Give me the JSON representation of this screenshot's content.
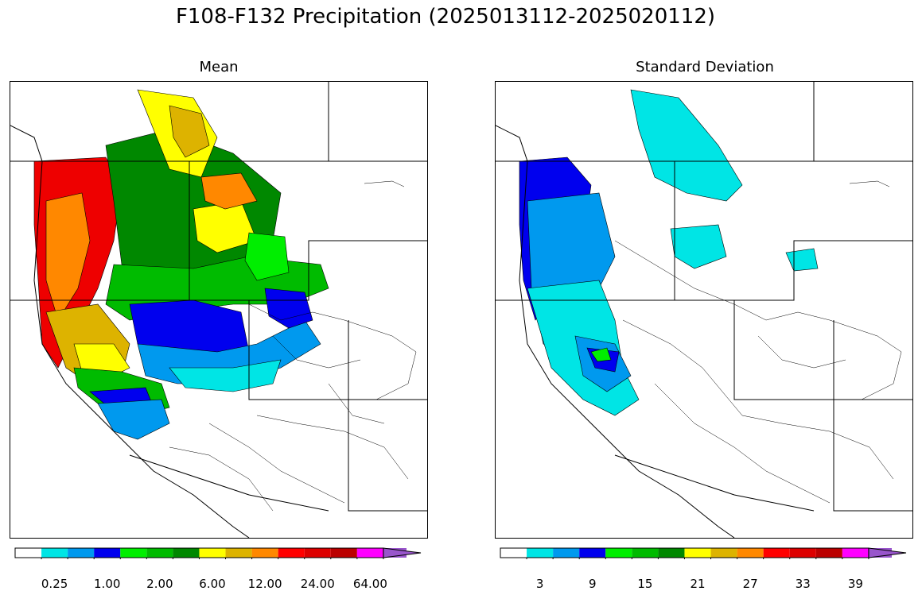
{
  "title": "F108-F132 Precipitation (2025013112-2025020112)",
  "panels": [
    {
      "id": "mean",
      "title": "Mean",
      "colorbar": {
        "colors": [
          "#ffffff",
          "#00e5e5",
          "#0099ee",
          "#0000ee",
          "#00ee00",
          "#00bb00",
          "#008800",
          "#ffff00",
          "#ddb300",
          "#ff8800",
          "#ff0000",
          "#dd0000",
          "#bb0000",
          "#ff00ff",
          "#9955cc"
        ],
        "labels": [
          "0.25",
          "1.00",
          "2.00",
          "6.00",
          "12.00",
          "24.00",
          "64.00"
        ],
        "label_after_segment": [
          1,
          3,
          5,
          7,
          9,
          11,
          13
        ]
      }
    },
    {
      "id": "sd",
      "title": "Standard Deviation",
      "colorbar": {
        "colors": [
          "#ffffff",
          "#00e5e5",
          "#0099ee",
          "#0000ee",
          "#00ee00",
          "#00bb00",
          "#008800",
          "#ffff00",
          "#ddb300",
          "#ff8800",
          "#ff0000",
          "#dd0000",
          "#bb0000",
          "#ff00ff",
          "#9955cc"
        ],
        "labels": [
          "3",
          "9",
          "15",
          "21",
          "27",
          "33",
          "39"
        ],
        "label_after_segment": [
          1,
          3,
          5,
          7,
          9,
          11,
          13
        ]
      }
    }
  ]
}
